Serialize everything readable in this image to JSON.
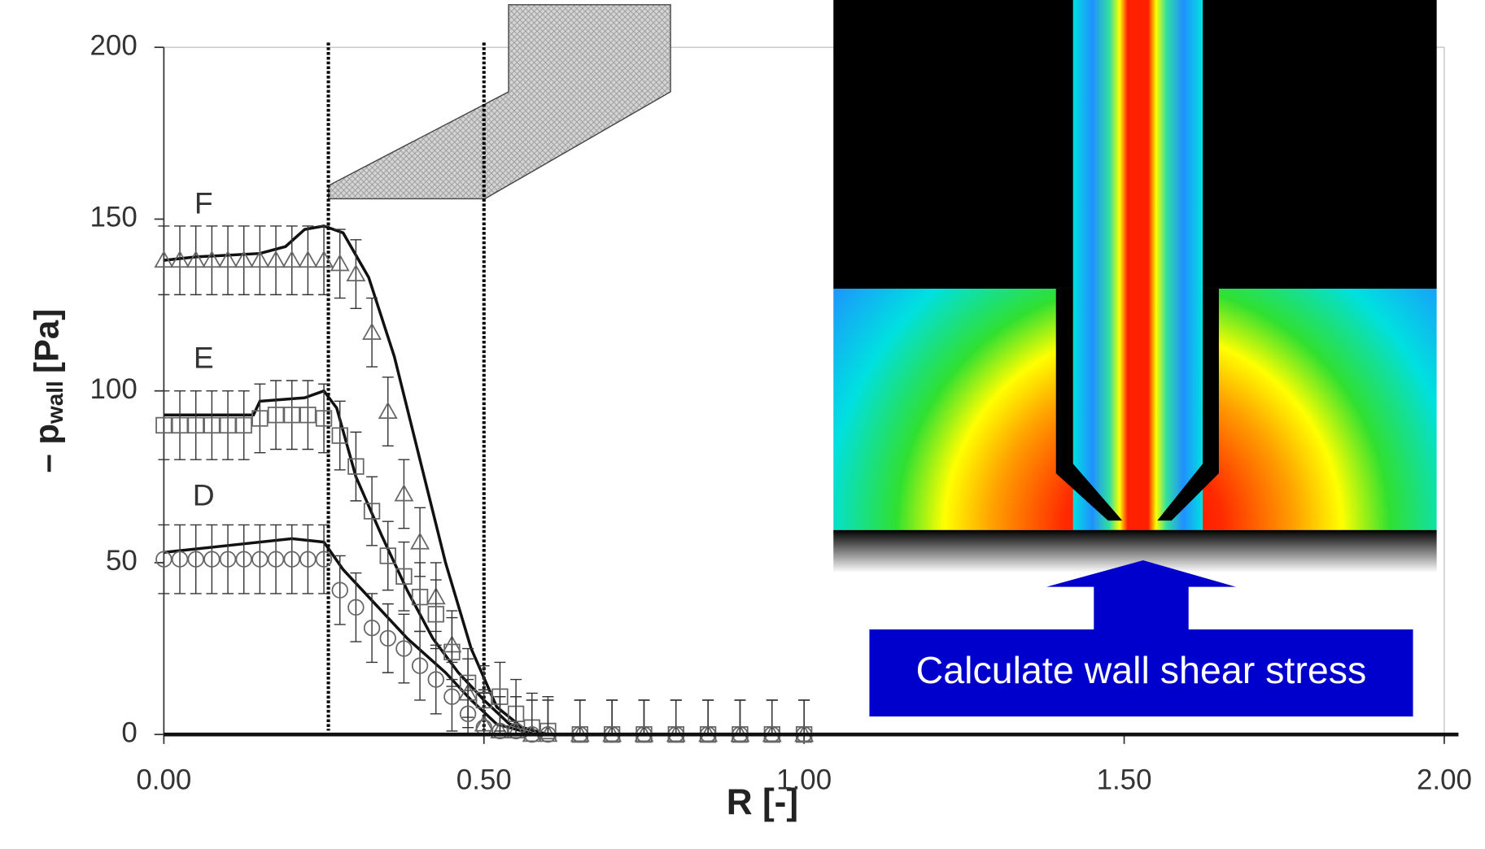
{
  "chart_data": {
    "type": "scatter",
    "x_label": "R [-]",
    "y_label": "– p",
    "y_label_subscript": "wall",
    "y_label_unit": "[Pa]",
    "xlim": [
      0,
      2
    ],
    "ylim": [
      0,
      200
    ],
    "xticks": [
      {
        "value": 0,
        "label": "0.00"
      },
      {
        "value": 0.5,
        "label": "0.50"
      },
      {
        "value": 1,
        "label": "1.00"
      },
      {
        "value": 1.5,
        "label": "1.50"
      },
      {
        "value": 2,
        "label": "2.00"
      }
    ],
    "yticks": [
      0,
      50,
      100,
      150,
      200
    ],
    "reference_lines_x": [
      0.257,
      0.5
    ],
    "lines": [
      {
        "color": "#111111",
        "x": [
          0,
          0.05,
          0.15,
          0.19,
          0.22,
          0.25,
          0.28,
          0.32,
          0.36,
          0.4,
          0.44,
          0.48,
          0.52,
          0.56,
          0.6,
          2.0
        ],
        "values": [
          138,
          139,
          140,
          142,
          147,
          148,
          146,
          133,
          110,
          80,
          50,
          25,
          8,
          2,
          0,
          0
        ]
      },
      {
        "color": "#111111",
        "x": [
          0,
          0.14,
          0.15,
          0.22,
          0.25,
          0.27,
          0.3,
          0.34,
          0.38,
          0.42,
          0.46,
          0.5,
          0.54,
          0.6,
          2.0
        ],
        "values": [
          93,
          93,
          97,
          98,
          100,
          95,
          75,
          58,
          42,
          28,
          18,
          10,
          3,
          0,
          0
        ]
      },
      {
        "color": "#111111",
        "x": [
          0,
          0.1,
          0.2,
          0.25,
          0.28,
          0.33,
          0.38,
          0.44,
          0.48,
          0.52,
          0.58,
          2.0
        ],
        "values": [
          53,
          55,
          57,
          56,
          48,
          38,
          28,
          18,
          10,
          3,
          0,
          0
        ]
      }
    ],
    "series": [
      {
        "name": "F",
        "marker": "triangle",
        "color": "#666666",
        "error": 10,
        "x": [
          0,
          0.025,
          0.05,
          0.075,
          0.1,
          0.125,
          0.15,
          0.175,
          0.2,
          0.225,
          0.25,
          0.275,
          0.3,
          0.325,
          0.35,
          0.375,
          0.4,
          0.425,
          0.45,
          0.475,
          0.5,
          0.525,
          0.55,
          0.575,
          0.6,
          0.65,
          0.7,
          0.75,
          0.8,
          0.85,
          0.9,
          0.95,
          1.0
        ],
        "values": [
          138,
          138,
          138,
          138,
          138,
          138,
          138,
          138,
          138,
          138,
          138,
          137,
          134,
          117,
          94,
          70,
          56,
          40,
          26,
          12,
          3,
          1,
          1,
          0,
          0,
          0,
          0,
          0,
          0,
          0,
          0,
          0,
          0
        ]
      },
      {
        "name": "E",
        "marker": "square",
        "color": "#666666",
        "error": 10,
        "x": [
          0,
          0.025,
          0.05,
          0.075,
          0.1,
          0.125,
          0.15,
          0.175,
          0.2,
          0.225,
          0.25,
          0.275,
          0.3,
          0.325,
          0.35,
          0.375,
          0.4,
          0.425,
          0.45,
          0.475,
          0.5,
          0.525,
          0.55,
          0.575,
          0.6,
          0.65,
          0.7,
          0.75,
          0.8,
          0.85,
          0.9,
          0.95,
          1.0
        ],
        "values": [
          90,
          90,
          90,
          90,
          90,
          90,
          92,
          93,
          93,
          93,
          92,
          87,
          78,
          65,
          52,
          46,
          40,
          35,
          24,
          15,
          10,
          11,
          6,
          2,
          1,
          0,
          0,
          0,
          0,
          0,
          0,
          0,
          0
        ]
      },
      {
        "name": "D",
        "marker": "circle",
        "color": "#666666",
        "error": 10,
        "x": [
          0,
          0.025,
          0.05,
          0.075,
          0.1,
          0.125,
          0.15,
          0.175,
          0.2,
          0.225,
          0.25,
          0.275,
          0.3,
          0.325,
          0.35,
          0.375,
          0.4,
          0.425,
          0.45,
          0.475,
          0.5,
          0.525,
          0.55,
          0.575,
          0.6,
          0.65,
          0.7,
          0.75,
          0.8,
          0.85,
          0.9,
          0.95,
          1.0
        ],
        "values": [
          51,
          51,
          51,
          51,
          51,
          51,
          51,
          51,
          51,
          51,
          51,
          42,
          37,
          31,
          28,
          25,
          20,
          16,
          11,
          6,
          2,
          1,
          1,
          0,
          0,
          0,
          0,
          0,
          0,
          0,
          0,
          0,
          0
        ]
      }
    ],
    "inset_caption": "Calculate wall shear stress"
  }
}
